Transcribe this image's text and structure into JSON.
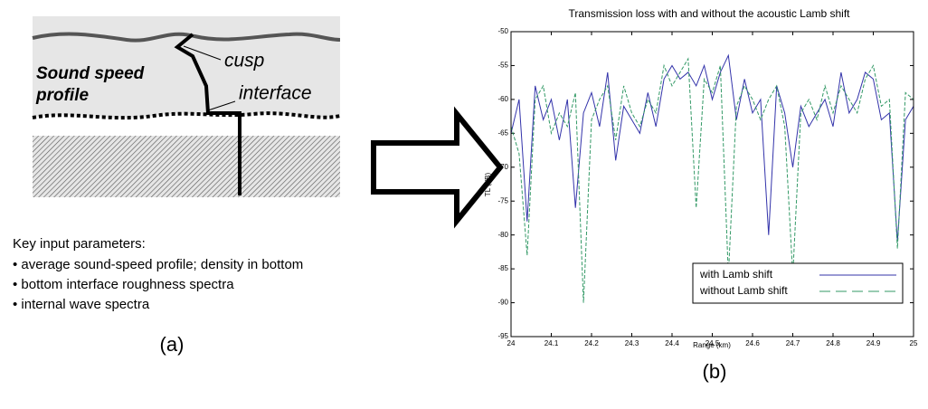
{
  "diagram": {
    "profile_label": [
      "Sound speed",
      "profile"
    ],
    "cusp_label": "cusp",
    "interface_label": "interface",
    "caption": "(a)"
  },
  "parameters": {
    "heading": "Key input parameters:",
    "items": [
      "• average sound-speed profile; density in bottom",
      "• bottom interface roughness spectra",
      "• internal wave spectra"
    ]
  },
  "chart_data": {
    "type": "line",
    "title": "Transmission loss with and without the acoustic Lamb shift",
    "x_label": "Range (km)",
    "y_label": "TL (dB)",
    "caption": "(b)",
    "x": [
      24,
      24.02,
      24.04,
      24.06,
      24.08,
      24.1,
      24.12,
      24.14,
      24.16,
      24.18,
      24.2,
      24.22,
      24.24,
      24.26,
      24.28,
      24.3,
      24.32,
      24.34,
      24.36,
      24.38,
      24.4,
      24.42,
      24.44,
      24.46,
      24.48,
      24.5,
      24.52,
      24.54,
      24.56,
      24.58,
      24.6,
      24.62,
      24.64,
      24.66,
      24.68,
      24.7,
      24.72,
      24.74,
      24.76,
      24.78,
      24.8,
      24.82,
      24.84,
      24.86,
      24.88,
      24.9,
      24.92,
      24.94,
      24.96,
      24.98,
      25
    ],
    "series": [
      {
        "name": "with Lamb shift",
        "color": "#3333aa",
        "style": "solid",
        "values": [
          -65,
          -60,
          -78,
          -58,
          -63,
          -60,
          -66,
          -60,
          -76,
          -62,
          -59,
          -64,
          -56,
          -69,
          -61,
          -63,
          -65,
          -59,
          -64,
          -57,
          -55,
          -57,
          -56,
          -58,
          -55,
          -60,
          -56,
          -53.5,
          -63,
          -57,
          -62,
          -60,
          -80,
          -58,
          -62,
          -70,
          -61,
          -64,
          -62,
          -60,
          -64,
          -56,
          -62,
          -60,
          -56,
          -57,
          -63,
          -62,
          -81,
          -63,
          -61
        ]
      },
      {
        "name": "without Lamb shift",
        "color": "#339966",
        "style": "dashed",
        "values": [
          -64,
          -68,
          -83,
          -60,
          -58,
          -65,
          -62,
          -64,
          -59,
          -90,
          -63,
          -60,
          -58,
          -66,
          -58,
          -62,
          -64,
          -60,
          -62,
          -55,
          -58,
          -56,
          -54,
          -76,
          -57,
          -59,
          -55,
          -86,
          -61,
          -58,
          -60,
          -63,
          -60,
          -58,
          -64,
          -86,
          -62,
          -60,
          -63,
          -58,
          -62,
          -58,
          -60,
          -62,
          -57,
          -55,
          -61,
          -60,
          -82,
          -59,
          -60
        ]
      }
    ],
    "xlim": [
      24,
      25
    ],
    "xticks": [
      24,
      24.1,
      24.2,
      24.3,
      24.4,
      24.5,
      24.6,
      24.7,
      24.8,
      24.9,
      25
    ],
    "ylim": [
      -95,
      -50
    ],
    "yticks": [
      -95,
      -90,
      -85,
      -80,
      -75,
      -70,
      -65,
      -60,
      -55,
      -50
    ],
    "legend": "lower-right"
  }
}
